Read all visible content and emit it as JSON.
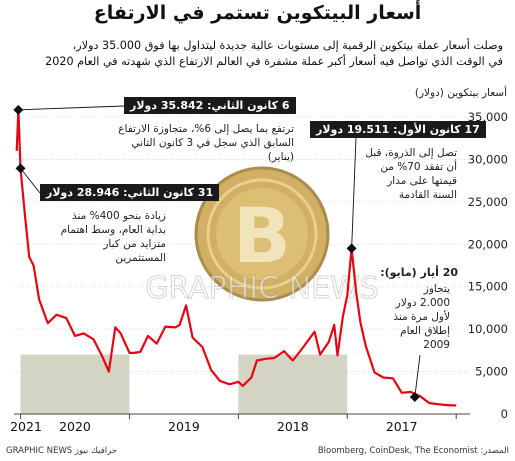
{
  "title": "أسعار البيتكوين تستمر في الارتفاع",
  "subtitle_line1": "وصلت أسعار عملة بيتكوين الرقمية إلى مستويات عالية جديدة ليتداول بها فوق 35.000 دولار،",
  "subtitle_line2": "في الوقت الذي تواصل فيه أسعار أكبر عملة مشفرة في العالم الارتفاع الذي شهدته في العام 2020",
  "source": "المصدر: Bloomberg, CoinDesk, The Economist",
  "credit": "GRAPHIC NEWS جرافيك نيوز",
  "colors": {
    "line": "#e30613",
    "band": "#d4d4c4",
    "marker": "#111111"
  },
  "chart_data": {
    "type": "line",
    "ylabel": "أسعار بيتكوين (دولار)",
    "ylim": [
      0,
      37000
    ],
    "x_direction": "right-to-left (time runs from 2017 on the right to 2021 on the left)",
    "yticks": [
      {
        "value": 0,
        "label": "0"
      },
      {
        "value": 5000,
        "label": "5,000"
      },
      {
        "value": 10000,
        "label": "10,000"
      },
      {
        "value": 15000,
        "label": "15,000"
      },
      {
        "value": 20000,
        "label": "20,000"
      },
      {
        "value": 25000,
        "label": "25,000"
      },
      {
        "value": 30000,
        "label": "30,000"
      },
      {
        "value": 35000,
        "label": "35,000"
      }
    ],
    "year_labels": [
      {
        "label": "2017",
        "start": 2017.0
      },
      {
        "label": "2018",
        "start": 2018.0
      },
      {
        "label": "2019",
        "start": 2019.0
      },
      {
        "label": "2020",
        "start": 2020.0
      },
      {
        "label": "2021",
        "start": 2021.0
      }
    ],
    "series": [
      {
        "values": [
          [
            2017.0,
            1000
          ],
          [
            2017.08,
            1050
          ],
          [
            2017.17,
            1150
          ],
          [
            2017.25,
            1300
          ],
          [
            2017.33,
            2100
          ],
          [
            2017.42,
            2600
          ],
          [
            2017.5,
            2500
          ],
          [
            2017.58,
            4200
          ],
          [
            2017.67,
            4300
          ],
          [
            2017.75,
            4900
          ],
          [
            2017.83,
            8000
          ],
          [
            2017.88,
            10800
          ],
          [
            2017.92,
            14500
          ],
          [
            2017.96,
            19511
          ],
          [
            2018.0,
            14000
          ],
          [
            2018.04,
            11500
          ],
          [
            2018.09,
            6900
          ],
          [
            2018.12,
            10500
          ],
          [
            2018.17,
            8500
          ],
          [
            2018.25,
            7000
          ],
          [
            2018.3,
            9700
          ],
          [
            2018.42,
            7600
          ],
          [
            2018.5,
            6300
          ],
          [
            2018.58,
            7400
          ],
          [
            2018.67,
            6600
          ],
          [
            2018.75,
            6500
          ],
          [
            2018.83,
            6300
          ],
          [
            2018.88,
            4300
          ],
          [
            2018.96,
            3300
          ],
          [
            2019.0,
            3800
          ],
          [
            2019.08,
            3500
          ],
          [
            2019.17,
            3900
          ],
          [
            2019.25,
            5200
          ],
          [
            2019.33,
            7900
          ],
          [
            2019.42,
            9000
          ],
          [
            2019.48,
            12800
          ],
          [
            2019.54,
            10500
          ],
          [
            2019.58,
            10200
          ],
          [
            2019.67,
            10300
          ],
          [
            2019.75,
            8300
          ],
          [
            2019.83,
            9200
          ],
          [
            2019.9,
            7300
          ],
          [
            2019.96,
            7200
          ],
          [
            2020.0,
            7200
          ],
          [
            2020.08,
            9500
          ],
          [
            2020.13,
            10200
          ],
          [
            2020.19,
            5000
          ],
          [
            2020.25,
            6800
          ],
          [
            2020.33,
            8800
          ],
          [
            2020.42,
            9500
          ],
          [
            2020.5,
            9200
          ],
          [
            2020.58,
            11300
          ],
          [
            2020.67,
            11700
          ],
          [
            2020.75,
            10700
          ],
          [
            2020.83,
            13500
          ],
          [
            2020.88,
            17500
          ],
          [
            2020.92,
            18500
          ],
          [
            2020.96,
            23500
          ],
          [
            2021.0,
            28946
          ],
          [
            2021.02,
            35842
          ],
          [
            2021.035,
            31000
          ]
        ]
      }
    ],
    "markers": [
      {
        "x": 2017.38,
        "y": 2000
      },
      {
        "x": 2017.96,
        "y": 19511
      },
      {
        "x": 2021.0,
        "y": 28946
      },
      {
        "x": 2021.02,
        "y": 35842
      }
    ],
    "annotations": [
      {
        "head": "6 كانون الثاني: 35.842 دولار",
        "lines": [
          "ترتفع بما يصل إلى 6%، متجاوزة الارتفاع",
          "السابق الذي سجل في 3 كانون الثاني (يناير)"
        ]
      },
      {
        "head": "31 كانون الثاني: 28.946 دولار",
        "lines": [
          "زيادة بنحو 400% منذ",
          "بداية العام، وسط اهتمام",
          "متزايد من كبار",
          "المستثمرين"
        ]
      },
      {
        "head": "17 كانون الأول: 19.511 دولار",
        "lines": [
          "تصل إلى الذروة، قبل",
          "أن تفقد 70% من",
          "قيمتها على مدار",
          "السنة القادمة"
        ]
      },
      {
        "head": "20 أيار (مايو):",
        "lines": [
          "يتجاوز",
          "2.000 دولار",
          "لأول مرة منذ",
          "إطلاق العام",
          "2009"
        ]
      }
    ]
  }
}
